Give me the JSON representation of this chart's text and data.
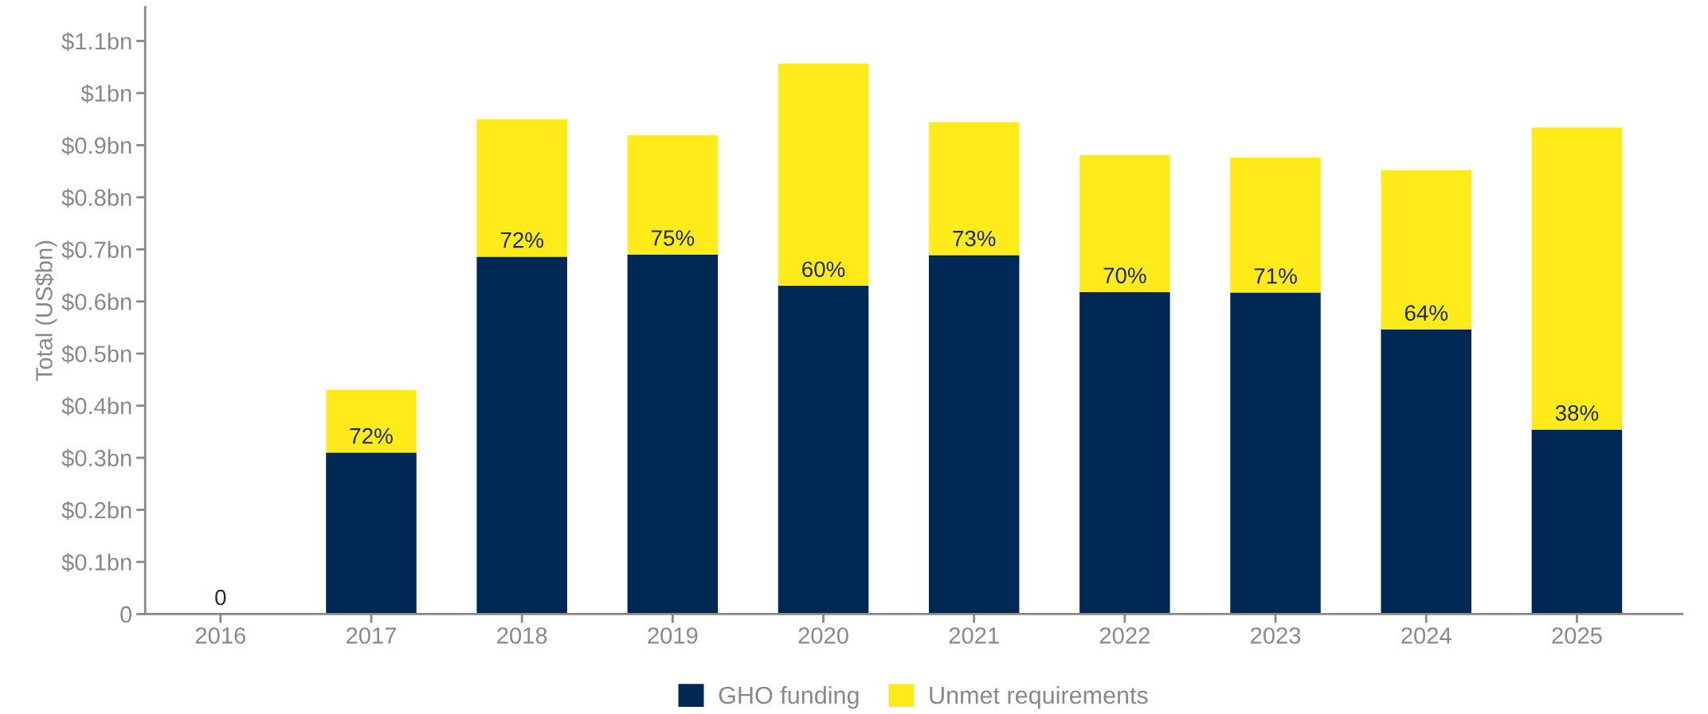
{
  "chart_data": {
    "type": "bar",
    "stacked": true,
    "ylabel": "Total (US$bn)",
    "categories": [
      "2016",
      "2017",
      "2018",
      "2019",
      "2020",
      "2021",
      "2022",
      "2023",
      "2024",
      "2025"
    ],
    "series": [
      {
        "name": "GHO funding",
        "color": "#002855",
        "values": [
          0,
          0.31,
          0.686,
          0.69,
          0.63,
          0.689,
          0.618,
          0.617,
          0.546,
          0.354
        ]
      },
      {
        "name": "Unmet requirements",
        "color": "#ffea1a",
        "values": [
          0,
          0.12,
          0.264,
          0.229,
          0.427,
          0.255,
          0.263,
          0.259,
          0.306,
          0.58
        ]
      }
    ],
    "ylim": [
      0,
      1.165
    ],
    "yticks": [
      0,
      {
        "value": 0.1,
        "label": "$0.1bn"
      },
      {
        "value": 0.2,
        "label": "$0.2bn"
      },
      {
        "value": 0.3,
        "label": "$0.3bn"
      },
      {
        "value": 0.4,
        "label": "$0.4bn"
      },
      {
        "value": 0.5,
        "label": "$0.5bn"
      },
      {
        "value": 0.6,
        "label": "$0.6bn"
      },
      {
        "value": 0.7,
        "label": "$0.7bn"
      },
      {
        "value": 0.8,
        "label": "$0.8bn"
      },
      {
        "value": 0.9,
        "label": "$0.9bn"
      },
      {
        "value": 1,
        "label": "$1bn"
      },
      {
        "value": 1.1,
        "label": "$1.1bn"
      }
    ],
    "annotations": [
      {
        "text": "0",
        "x": "2016",
        "y": 0
      },
      {
        "text": "72%",
        "x": "2017",
        "y": 0.31
      },
      {
        "text": "72%",
        "x": "2018",
        "y": 0.686
      },
      {
        "text": "75%",
        "x": "2019",
        "y": 0.69
      },
      {
        "text": "60%",
        "x": "2020",
        "y": 0.63
      },
      {
        "text": "73%",
        "x": "2021",
        "y": 0.689
      },
      {
        "text": "70%",
        "x": "2022",
        "y": 0.618
      },
      {
        "text": "71%",
        "x": "2023",
        "y": 0.617
      },
      {
        "text": "64%",
        "x": "2024",
        "y": 0.546
      },
      {
        "text": "38%",
        "x": "2025",
        "y": 0.354
      }
    ],
    "grid": false,
    "legend": "bottom"
  }
}
